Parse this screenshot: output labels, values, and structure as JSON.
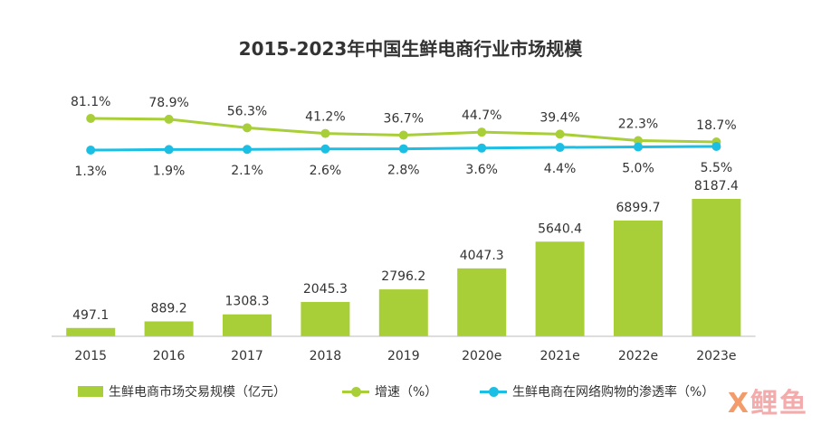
{
  "title": "2015-2023年中国生鲜电商行业市场规模",
  "colors": {
    "bar": "#a9cf38",
    "growth": "#a9cf38",
    "penetration": "#1cbfe4",
    "axis": "#bbbbbb",
    "text": "#333333"
  },
  "watermark": {
    "x": "X",
    "rest": "鲤鱼"
  },
  "chart_data": {
    "type": "bar",
    "title": "2015-2023年中国生鲜电商行业市场规模",
    "categories": [
      "2015",
      "2016",
      "2017",
      "2018",
      "2019",
      "2020e",
      "2021e",
      "2022e",
      "2023e"
    ],
    "series": [
      {
        "name": "生鲜电商市场交易规模（亿元）",
        "type": "bar",
        "values": [
          497.1,
          889.2,
          1308.3,
          2045.3,
          2796.2,
          4047.3,
          5640.4,
          6899.7,
          8187.4
        ],
        "labels": [
          "497.1",
          "889.2",
          "1308.3",
          "2045.3",
          "2796.2",
          "4047.3",
          "5640.4",
          "6899.7",
          "8187.4"
        ]
      },
      {
        "name": "增速（%）",
        "type": "line",
        "values": [
          81.1,
          78.9,
          56.3,
          41.2,
          36.7,
          44.7,
          39.4,
          22.3,
          18.7
        ],
        "labels": [
          "81.1%",
          "78.9%",
          "56.3%",
          "41.2%",
          "36.7%",
          "44.7%",
          "39.4%",
          "22.3%",
          "18.7%"
        ]
      },
      {
        "name": "生鲜电商在网络购物的渗透率（%）",
        "type": "line",
        "values": [
          1.3,
          1.9,
          2.1,
          2.6,
          2.8,
          3.6,
          4.4,
          5.0,
          5.5
        ],
        "labels": [
          "1.3%",
          "1.9%",
          "2.1%",
          "2.6%",
          "2.8%",
          "3.6%",
          "4.4%",
          "5.0%",
          "5.5%"
        ]
      }
    ],
    "legend": "bottom",
    "grid": false
  }
}
